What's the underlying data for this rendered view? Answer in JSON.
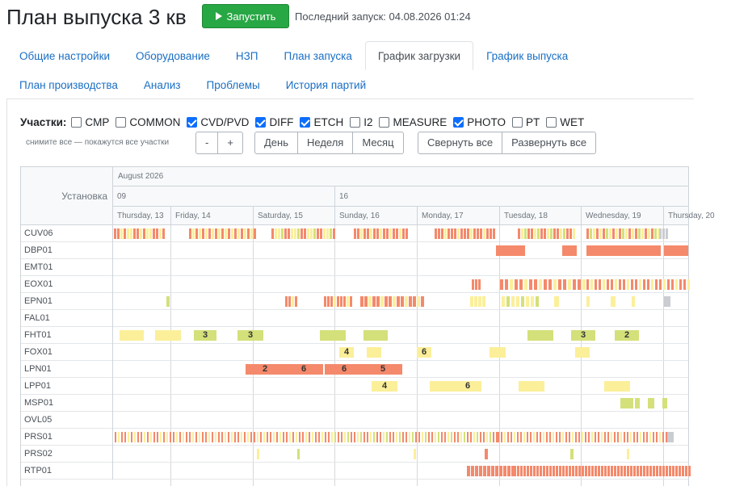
{
  "header": {
    "title": "План выпуска 3 кв",
    "run_label": "Запустить",
    "last_run": "Последний запуск: 04.08.2026 01:24"
  },
  "tabs_row1": [
    {
      "label": "Общие настройки",
      "active": false
    },
    {
      "label": "Оборудование",
      "active": false
    },
    {
      "label": "НЗП",
      "active": false
    },
    {
      "label": "План запуска",
      "active": false
    },
    {
      "label": "График загрузки",
      "active": true
    },
    {
      "label": "График выпуска",
      "active": false
    }
  ],
  "tabs_row2": [
    {
      "label": "План производства",
      "active": false
    },
    {
      "label": "Анализ",
      "active": false
    },
    {
      "label": "Проблемы",
      "active": false
    },
    {
      "label": "История партий",
      "active": false
    }
  ],
  "areas": {
    "label": "Участки:",
    "hint": "снимите все — покажутся все участки",
    "items": [
      {
        "label": "CMP",
        "checked": false
      },
      {
        "label": "COMMON",
        "checked": false
      },
      {
        "label": "CVD/PVD",
        "checked": true
      },
      {
        "label": "DIFF",
        "checked": true
      },
      {
        "label": "ETCH",
        "checked": true
      },
      {
        "label": "I2",
        "checked": false
      },
      {
        "label": "MEASURE",
        "checked": false
      },
      {
        "label": "PHOTO",
        "checked": true
      },
      {
        "label": "PT",
        "checked": false
      },
      {
        "label": "WET",
        "checked": false
      }
    ]
  },
  "zoom": {
    "minus": "-",
    "plus": "+"
  },
  "scale": {
    "day": "День",
    "week": "Неделя",
    "month": "Месяц"
  },
  "collapse": {
    "collapse_all": "Свернуть все",
    "expand_all": "Развернуть все"
  },
  "colors": {
    "red": "#f4896b",
    "yellow": "#fbef9a",
    "green": "#d4e07a",
    "gray": "#c9ccd1",
    "accent": "#28a745"
  },
  "gantt": {
    "column_header": "Установка",
    "month": "August 2026",
    "weeks": [
      "09",
      "16"
    ],
    "days": [
      "Thursday, 13",
      "Friday, 14",
      "Saturday, 15",
      "Sunday, 16",
      "Monday, 17",
      "Tuesday, 18",
      "Wednesday, 19",
      "Thursday, 20"
    ],
    "rows": [
      "CUV06",
      "DBP01",
      "EMT01",
      "EOX01",
      "EPN01",
      "FAL01",
      "FHT01",
      "FOX01",
      "LPN01",
      "LPP01",
      "MSP01",
      "OVL05",
      "PRS01",
      "PRS02",
      "RTP01"
    ]
  }
}
